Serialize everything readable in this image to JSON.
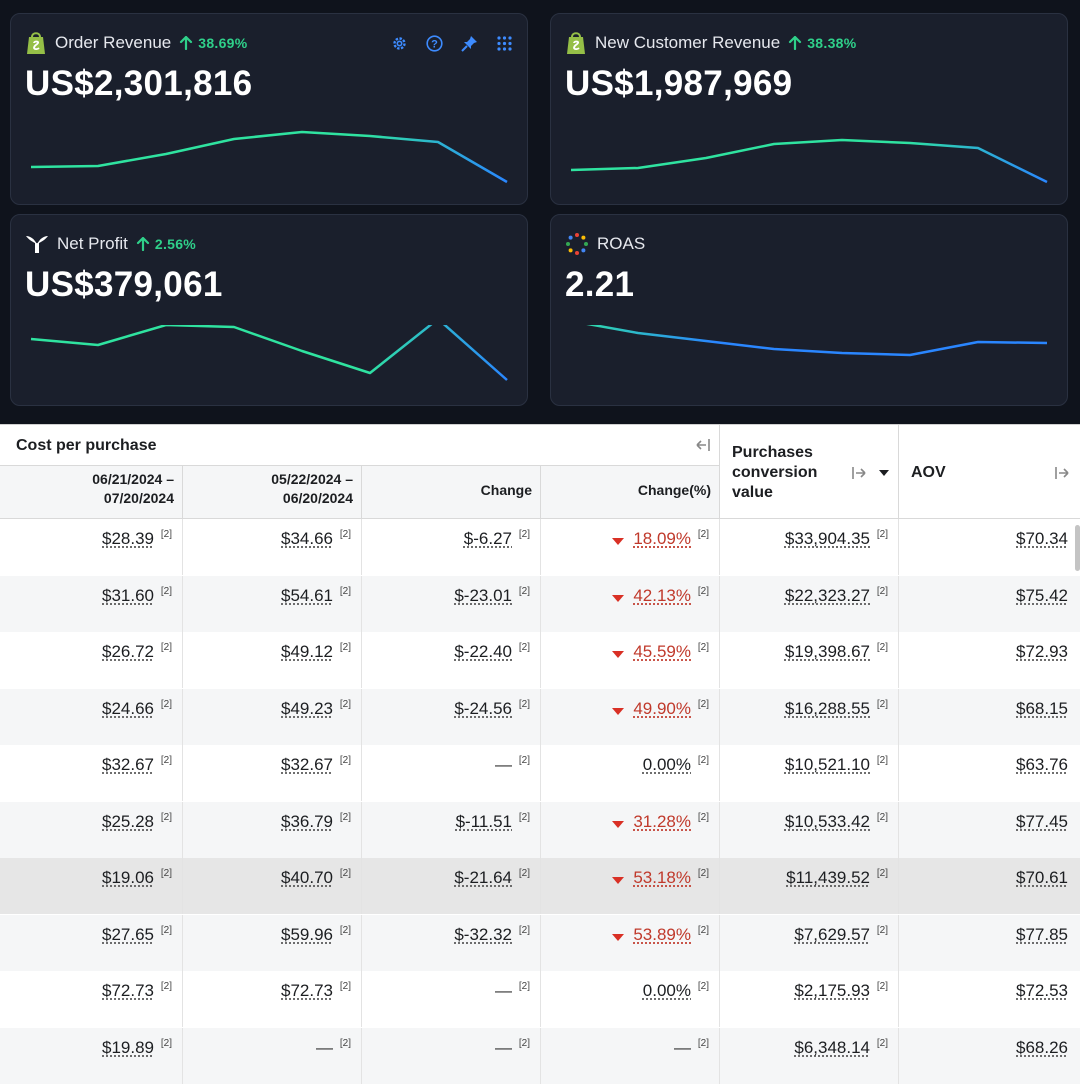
{
  "cards": [
    {
      "title": "Order Revenue",
      "change": "38.69%",
      "value": "US$2,301,816",
      "icon": "shopify-bag-icon",
      "spark": [
        166,
        165,
        153,
        138,
        131,
        135,
        141,
        181
      ]
    },
    {
      "title": "New Customer Revenue",
      "change": "38.38%",
      "value": "US$1,987,969",
      "icon": "shopify-bag-icon",
      "spark": [
        169,
        167,
        157,
        143,
        139,
        142,
        147,
        181
      ]
    },
    {
      "title": "Net Profit",
      "change": "2.56%",
      "value": "US$379,061",
      "icon": "triple-whale-icon",
      "spark": [
        338,
        344,
        324,
        326,
        350,
        372,
        318,
        379
      ]
    },
    {
      "title": "ROAS",
      "change": "",
      "value": "2.21",
      "icon": "roas-dots-icon",
      "spark": [
        320,
        332,
        340,
        348,
        352,
        354,
        341,
        342
      ]
    }
  ],
  "colors": {
    "spark_start": "#2fe3a0",
    "spark_end": "#2a86ff",
    "positive": "#2fd08a",
    "negative": "#d93025",
    "card_bg": "#1a1f2c"
  },
  "table": {
    "group_label": "Cost per purchase",
    "columns": {
      "current": [
        "06/21/2024 –",
        "07/20/2024"
      ],
      "previous": [
        "05/22/2024 –",
        "06/20/2024"
      ],
      "change": "Change",
      "change_pct": "Change(%)",
      "pcv": [
        "Purchases",
        "conversion",
        "value"
      ],
      "aov": "AOV"
    },
    "footnote": "[2]",
    "rows": [
      {
        "cur": "$28.39",
        "prev": "$34.66",
        "chg": "$-6.27",
        "pct": "18.09%",
        "dir": "down",
        "pcv": "$33,904.35",
        "aov": "$70.34"
      },
      {
        "cur": "$31.60",
        "prev": "$54.61",
        "chg": "$-23.01",
        "pct": "42.13%",
        "dir": "down",
        "pcv": "$22,323.27",
        "aov": "$75.42"
      },
      {
        "cur": "$26.72",
        "prev": "$49.12",
        "chg": "$-22.40",
        "pct": "45.59%",
        "dir": "down",
        "pcv": "$19,398.67",
        "aov": "$72.93"
      },
      {
        "cur": "$24.66",
        "prev": "$49.23",
        "chg": "$-24.56",
        "pct": "49.90%",
        "dir": "down",
        "pcv": "$16,288.55",
        "aov": "$68.15"
      },
      {
        "cur": "$32.67",
        "prev": "$32.67",
        "chg": "—",
        "pct": "0.00%",
        "dir": "none",
        "pcv": "$10,521.10",
        "aov": "$63.76"
      },
      {
        "cur": "$25.28",
        "prev": "$36.79",
        "chg": "$-11.51",
        "pct": "31.28%",
        "dir": "down",
        "pcv": "$10,533.42",
        "aov": "$77.45"
      },
      {
        "cur": "$19.06",
        "prev": "$40.70",
        "chg": "$-21.64",
        "pct": "53.18%",
        "dir": "down",
        "pcv": "$11,439.52",
        "aov": "$70.61"
      },
      {
        "cur": "$27.65",
        "prev": "$59.96",
        "chg": "$-32.32",
        "pct": "53.89%",
        "dir": "down",
        "pcv": "$7,629.57",
        "aov": "$77.85"
      },
      {
        "cur": "$72.73",
        "prev": "$72.73",
        "chg": "—",
        "pct": "0.00%",
        "dir": "none",
        "pcv": "$2,175.93",
        "aov": "$72.53"
      },
      {
        "cur": "$19.89",
        "prev": "—",
        "chg": "—",
        "pct": "—",
        "dir": "dash",
        "pcv": "$6,348.14",
        "aov": "$68.26"
      }
    ]
  }
}
